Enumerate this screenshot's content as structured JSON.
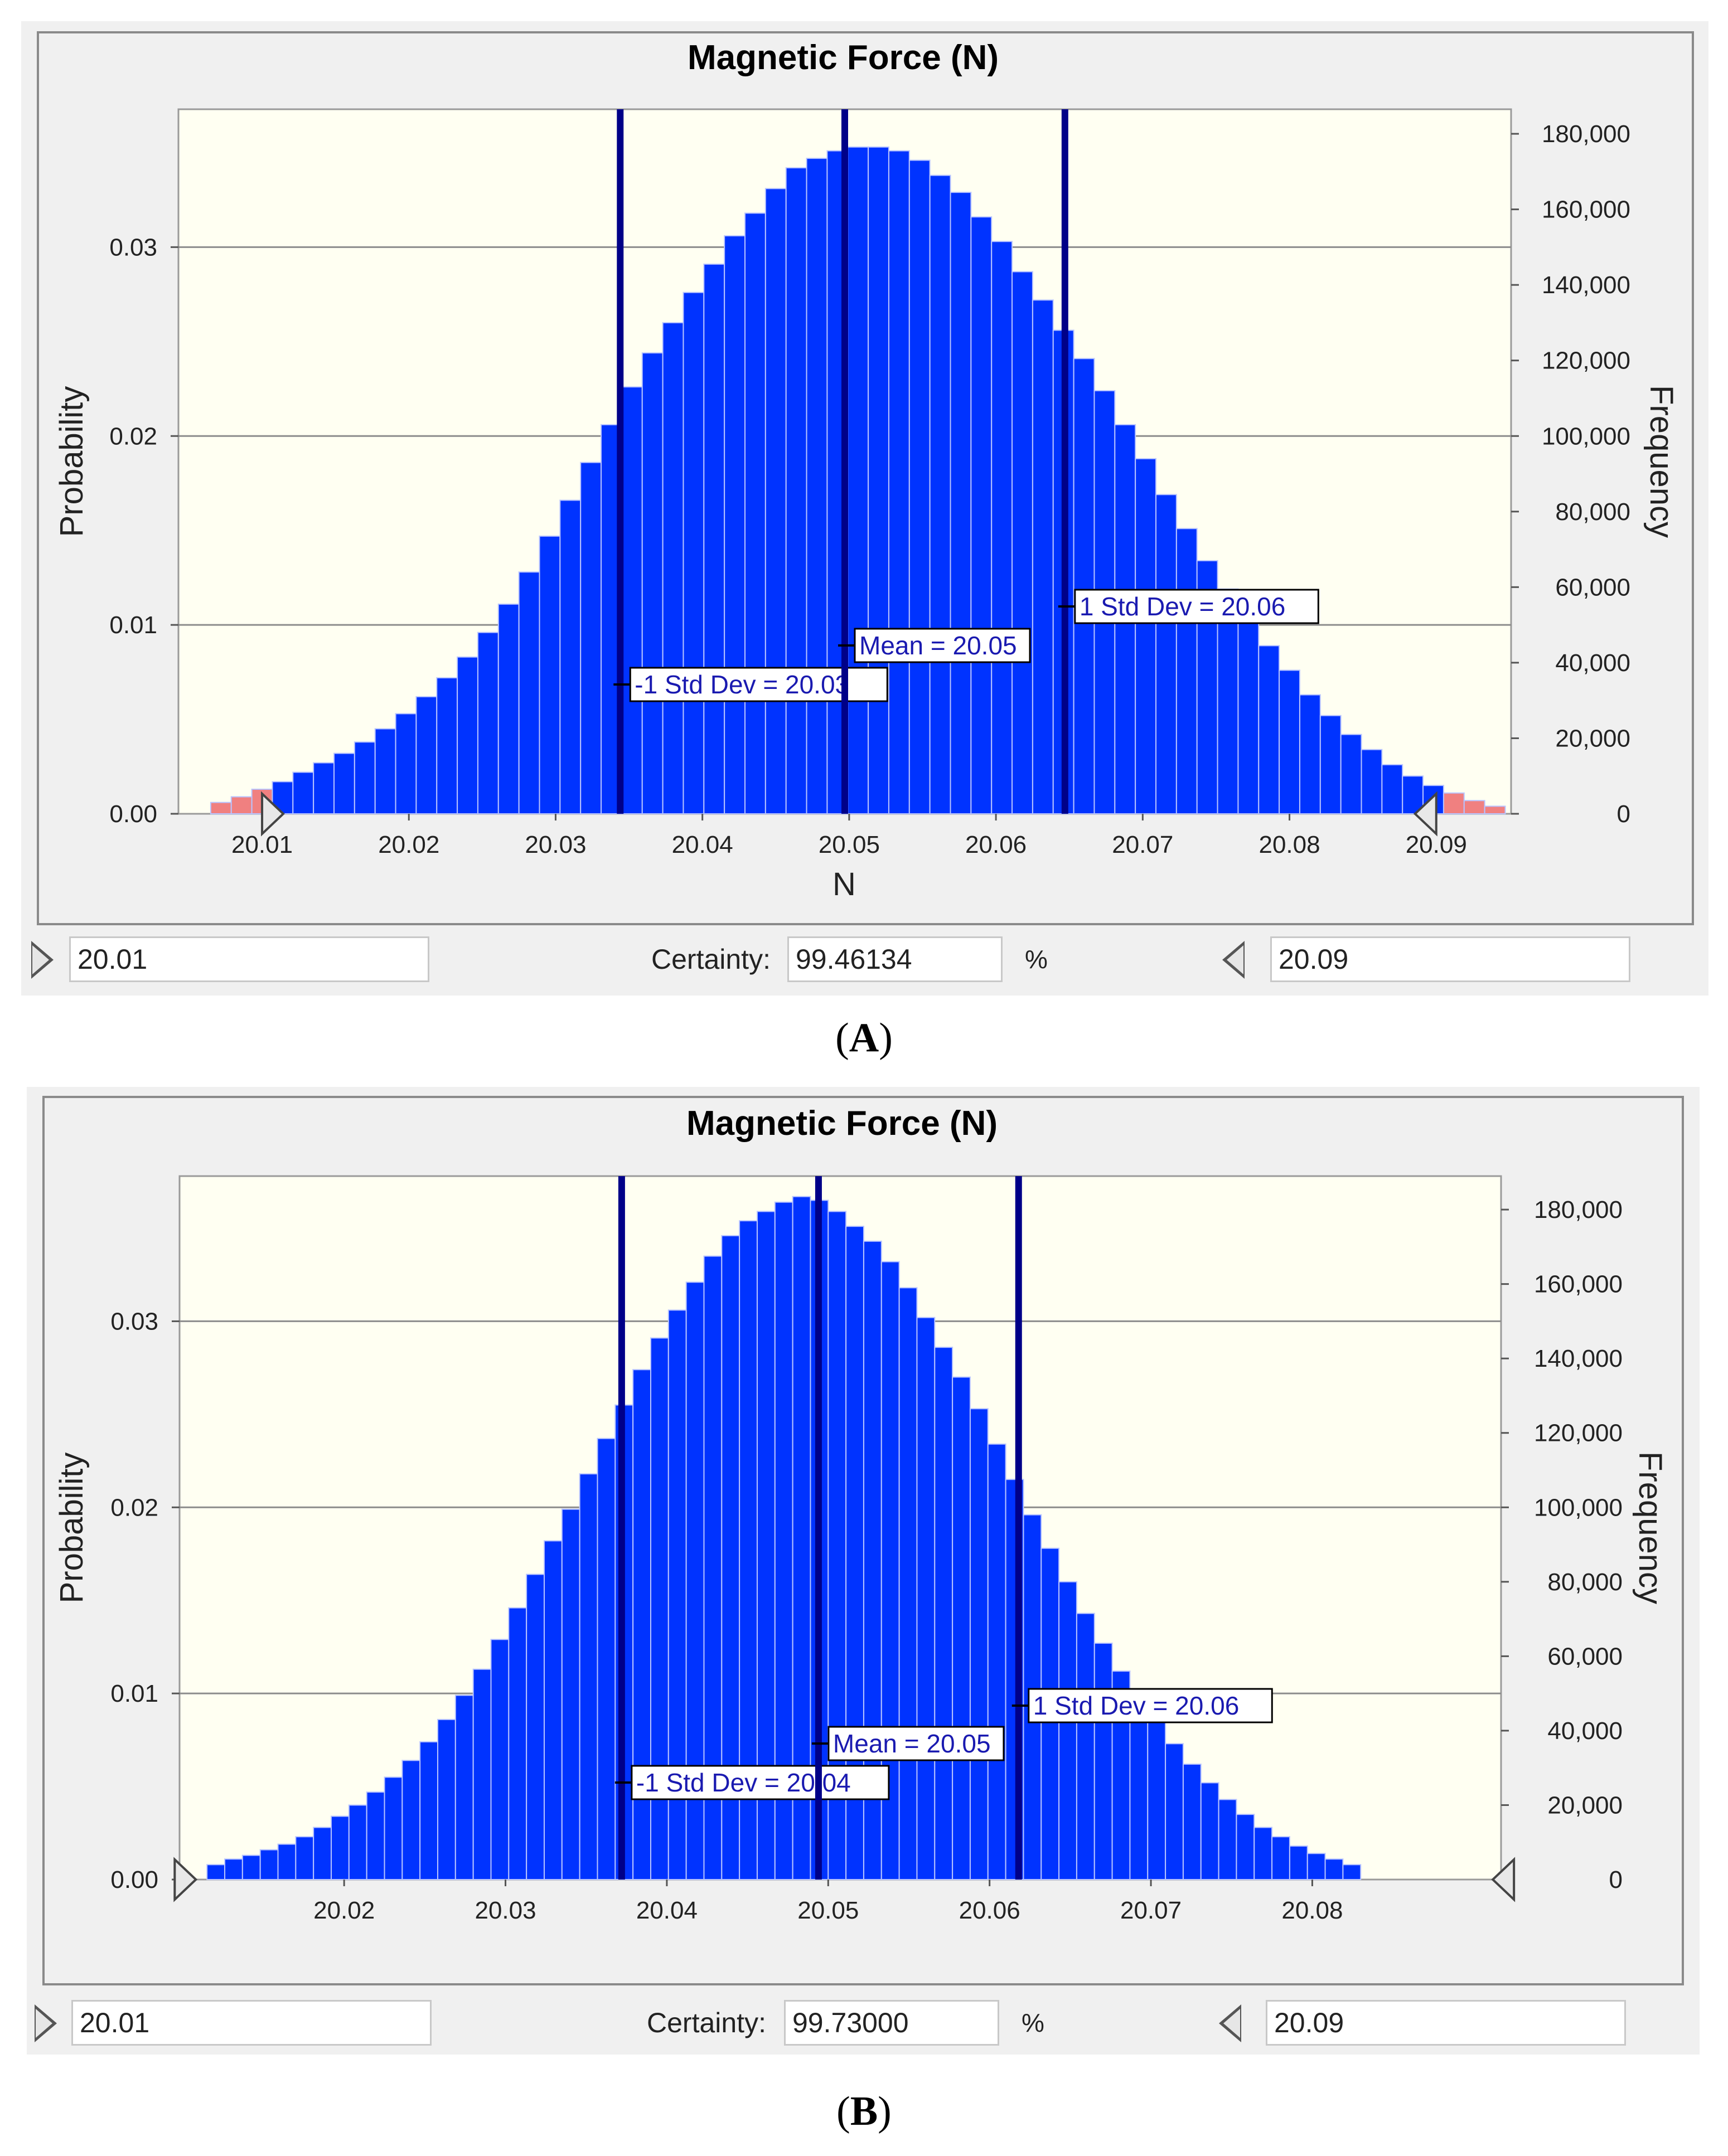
{
  "figure": {
    "panels": [
      {
        "caption_letter": "A",
        "chart_data": {
          "type": "bar",
          "title": "Magnetic Force (N)",
          "xlabel": "N",
          "ylabel": "Probability",
          "y2label": "Frequency",
          "xlim": [
            20.0043,
            20.0951
          ],
          "ylim": [
            0,
            0.0373
          ],
          "y2lim": [
            0,
            186500
          ],
          "xticks": [
            20.01,
            20.02,
            20.03,
            20.04,
            20.05,
            20.06,
            20.07,
            20.08,
            20.09
          ],
          "xtick_labels": [
            "20.01",
            "20.02",
            "20.03",
            "20.04",
            "20.05",
            "20.06",
            "20.07",
            "20.08",
            "20.09"
          ],
          "yticks": [
            0.0,
            0.01,
            0.02,
            0.03
          ],
          "ytick_labels": [
            "0.00",
            "0.01",
            "0.02",
            "0.03"
          ],
          "y2ticks": [
            0,
            20000,
            40000,
            60000,
            80000,
            100000,
            120000,
            140000,
            160000,
            180000
          ],
          "y2tick_labels": [
            "0",
            "20,000",
            "40,000",
            "60,000",
            "80,000",
            "100,000",
            "120,000",
            "140,000",
            "160,000",
            "180,000"
          ],
          "bin_start": 20.0065,
          "bin_width": 0.0014,
          "probabilities": [
            0.0006,
            0.0009,
            0.0013,
            0.0017,
            0.0022,
            0.0027,
            0.0032,
            0.0038,
            0.0045,
            0.0053,
            0.0062,
            0.0072,
            0.0083,
            0.0096,
            0.0111,
            0.0128,
            0.0147,
            0.0166,
            0.0186,
            0.0206,
            0.0226,
            0.0244,
            0.026,
            0.0276,
            0.0291,
            0.0306,
            0.0318,
            0.0331,
            0.0342,
            0.0347,
            0.0351,
            0.0353,
            0.0353,
            0.0351,
            0.0346,
            0.0338,
            0.0329,
            0.0316,
            0.0303,
            0.0287,
            0.0272,
            0.0256,
            0.0241,
            0.0224,
            0.0206,
            0.0188,
            0.0169,
            0.0151,
            0.0134,
            0.0119,
            0.0104,
            0.0089,
            0.0076,
            0.0063,
            0.0052,
            0.0042,
            0.0034,
            0.0026,
            0.002,
            0.0015,
            0.0011,
            0.0007,
            0.0004
          ],
          "out_of_range_bins_color": "#f08080",
          "bar_color": "#0033ff",
          "lower_marker": 20.01,
          "upper_marker": 20.09,
          "reference_lines": [
            {
              "label": "-1 Std Dev = 20.03",
              "x": 20.0344
            },
            {
              "label": "Mean = 20.05",
              "x": 20.0497
            },
            {
              "label": "1 Std Dev = 20.06",
              "x": 20.0647
            }
          ],
          "lower_value": "20.01",
          "upper_value": "20.09",
          "certainty_label": "Certainty:",
          "certainty": "99.46134",
          "percent": "%"
        }
      },
      {
        "caption_letter": "B",
        "chart_data": {
          "type": "bar",
          "title": "Magnetic Force (N)",
          "xlabel": "",
          "ylabel": "Probability",
          "y2label": "Frequency",
          "xlim": [
            20.0098,
            20.0917
          ],
          "ylim": [
            0,
            0.0378
          ],
          "y2lim": [
            0,
            189000
          ],
          "xticks": [
            20.02,
            20.03,
            20.04,
            20.05,
            20.06,
            20.07,
            20.08
          ],
          "xtick_labels": [
            "20.02",
            "20.03",
            "20.04",
            "20.05",
            "20.06",
            "20.07",
            "20.08"
          ],
          "yticks": [
            0.0,
            0.01,
            0.02,
            0.03
          ],
          "ytick_labels": [
            "0.00",
            "0.01",
            "0.02",
            "0.03"
          ],
          "y2ticks": [
            0,
            20000,
            40000,
            60000,
            80000,
            100000,
            120000,
            140000,
            160000,
            180000
          ],
          "y2tick_labels": [
            "0",
            "20,000",
            "40,000",
            "60,000",
            "80,000",
            "100,000",
            "120,000",
            "140,000",
            "160,000",
            "180,000"
          ],
          "bin_start": 20.0115,
          "bin_width": 0.0011,
          "probabilities": [
            0.0008,
            0.0011,
            0.0013,
            0.0016,
            0.0019,
            0.0023,
            0.0028,
            0.0034,
            0.004,
            0.0047,
            0.0055,
            0.0064,
            0.0074,
            0.0086,
            0.0099,
            0.0113,
            0.0129,
            0.0146,
            0.0164,
            0.0182,
            0.0199,
            0.0218,
            0.0237,
            0.0255,
            0.0274,
            0.0291,
            0.0306,
            0.0321,
            0.0335,
            0.0346,
            0.0354,
            0.0359,
            0.0364,
            0.0367,
            0.0365,
            0.0359,
            0.0351,
            0.0343,
            0.0332,
            0.0318,
            0.0302,
            0.0286,
            0.027,
            0.0253,
            0.0234,
            0.0215,
            0.0196,
            0.0178,
            0.016,
            0.0143,
            0.0127,
            0.0112,
            0.0098,
            0.0085,
            0.0073,
            0.0062,
            0.0052,
            0.0043,
            0.0035,
            0.0028,
            0.0023,
            0.0018,
            0.0014,
            0.0011,
            0.0008
          ],
          "bar_color": "#0033ff",
          "lower_marker": 20.0095,
          "upper_marker": 20.0925,
          "reference_lines": [
            {
              "label": "-1 Std Dev = 20.04",
              "x": 20.0372
            },
            {
              "label": "Mean = 20.05",
              "x": 20.0494
            },
            {
              "label": "1 Std Dev = 20.06",
              "x": 20.0618
            }
          ],
          "lower_value": "20.01",
          "upper_value": "20.09",
          "certainty_label": "Certainty:",
          "certainty": "99.73000",
          "percent": "%"
        }
      }
    ]
  }
}
